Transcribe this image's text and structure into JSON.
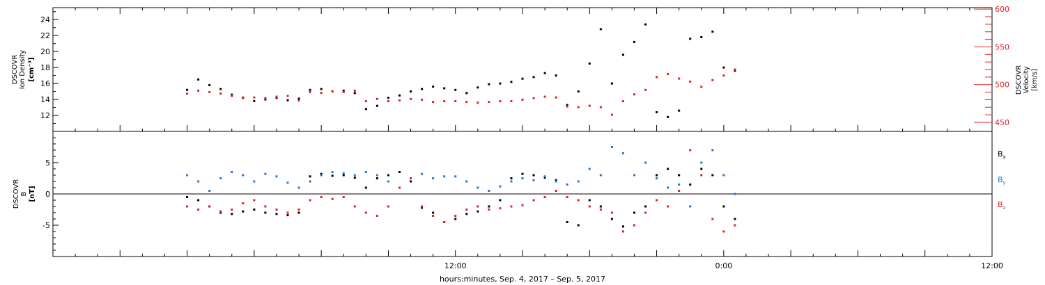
{
  "chart_data": [
    {
      "type": "scatter",
      "panel": "top",
      "ylabel": [
        "DSCOVR",
        "Ion  Density",
        "[cm⁻³]"
      ],
      "ylim": [
        10,
        25.5
      ],
      "yticks": [
        "12",
        "14",
        "16",
        "18",
        "20",
        "22",
        "24"
      ],
      "y2label": [
        "DSCOVR",
        "Velocity",
        "[km/s]"
      ],
      "y2lim": [
        438,
        602
      ],
      "y2ticks": [
        "450",
        "500",
        "550",
        "600"
      ],
      "right_axis_color": "#e02020",
      "series": [
        {
          "axis": "left",
          "color": "#000000",
          "x": [
            0,
            0.5,
            1,
            1.5,
            2,
            2.5,
            3,
            3.5,
            4,
            4.5,
            5,
            5.5,
            6,
            6.5,
            7,
            7.5,
            8,
            8.5,
            9,
            9.5,
            10,
            10.5,
            11,
            11.5,
            12,
            12.5,
            13,
            13.5,
            14,
            14.5,
            15,
            15.5,
            16,
            16.5,
            17,
            17.5,
            18,
            18.5,
            19,
            19.5,
            20,
            20.5,
            21,
            21.5,
            22,
            22.5,
            23,
            23.5,
            24,
            24.5
          ],
          "values": [
            15.2,
            16.5,
            15.8,
            15.3,
            14.6,
            14.2,
            13.8,
            14.0,
            14.2,
            13.9,
            14.1,
            15.2,
            15.3,
            15.0,
            15.1,
            14.8,
            12.8,
            13.2,
            14.2,
            14.5,
            15.0,
            15.3,
            15.6,
            15.4,
            15.2,
            14.8,
            15.5,
            15.9,
            16.0,
            16.2,
            16.6,
            16.8,
            17.3,
            17.0,
            13.3,
            15.0,
            18.5,
            22.8,
            16.0,
            19.6,
            21.2,
            23.4,
            12.4,
            11.8,
            12.6,
            21.6,
            21.8,
            22.5,
            18.0,
            17.6
          ]
        },
        {
          "axis": "right",
          "color": "#e02020",
          "x": [
            0,
            0.5,
            1,
            1.5,
            2,
            2.5,
            3,
            3.5,
            4,
            4.5,
            5,
            5.5,
            6,
            6.5,
            7,
            7.5,
            8,
            8.5,
            9,
            9.5,
            10,
            10.5,
            11,
            11.5,
            12,
            12.5,
            13,
            13.5,
            14,
            14.5,
            15,
            15.5,
            16,
            16.5,
            17,
            17.5,
            18,
            18.5,
            19,
            19.5,
            20,
            20.5,
            21,
            21.5,
            22,
            22.5,
            23,
            23.5,
            24,
            24.5
          ],
          "values": [
            488,
            492,
            490,
            488,
            485,
            483,
            483,
            482,
            484,
            485,
            479,
            490,
            489,
            491,
            490,
            492,
            478,
            481,
            478,
            479,
            481,
            480,
            477,
            478,
            478,
            477,
            476,
            477,
            478,
            478,
            480,
            482,
            484,
            483,
            471,
            470,
            472,
            470,
            460,
            478,
            487,
            493,
            510,
            514,
            508,
            504,
            497,
            506,
            512,
            520
          ]
        }
      ]
    },
    {
      "type": "scatter",
      "panel": "bottom",
      "ylabel": [
        "DSCOVR",
        "B",
        "[nT]"
      ],
      "ylim": [
        -10,
        10
      ],
      "yticks": [
        "-5",
        "0",
        "5"
      ],
      "series": [
        {
          "name": "Bx",
          "color": "#000000",
          "x": [
            0,
            0.5,
            1,
            1.5,
            2,
            2.5,
            3,
            3.5,
            4,
            4.5,
            5,
            5.5,
            6,
            6.5,
            7,
            7.5,
            8,
            8.5,
            9,
            9.5,
            10,
            10.5,
            11,
            11.5,
            12,
            12.5,
            13,
            13.5,
            14,
            14.5,
            15,
            15.5,
            16,
            16.5,
            17,
            17.5,
            18,
            18.5,
            19,
            19.5,
            20,
            20.5,
            21,
            21.5,
            22,
            22.5,
            23,
            23.5,
            24,
            24.5
          ],
          "values": [
            -0.5,
            -1.0,
            -2.0,
            -3.0,
            -3.2,
            -2.8,
            -2.5,
            -3.0,
            -3.2,
            -3.4,
            -3.0,
            2.8,
            3.2,
            2.9,
            3.0,
            2.6,
            1.0,
            2.5,
            3.0,
            3.5,
            2.0,
            -2.2,
            -3.0,
            -4.5,
            -4.0,
            -3.2,
            -2.8,
            -2.0,
            -1.0,
            2.5,
            3.2,
            3.0,
            2.6,
            2.2,
            -4.5,
            -5.0,
            -1.0,
            -2.0,
            -4.0,
            -5.2,
            -3.0,
            -2.0,
            3.0,
            4.0,
            3.0,
            1.5,
            4.0,
            3.0,
            -2.0,
            -4.0
          ]
        },
        {
          "name": "By",
          "color": "#1e78d2",
          "x": [
            0,
            0.5,
            1,
            1.5,
            2,
            2.5,
            3,
            3.5,
            4,
            4.5,
            5,
            5.5,
            6,
            6.5,
            7,
            7.5,
            8,
            8.5,
            9,
            9.5,
            10,
            10.5,
            11,
            11.5,
            12,
            12.5,
            13,
            13.5,
            14,
            14.5,
            15,
            15.5,
            16,
            16.5,
            17,
            17.5,
            18,
            18.5,
            19,
            19.5,
            20,
            20.5,
            21,
            21.5,
            22,
            22.5,
            23,
            23.5,
            24,
            24.5
          ],
          "values": [
            3.0,
            2.0,
            0.5,
            2.5,
            3.5,
            3.0,
            2.0,
            3.2,
            2.8,
            1.8,
            1.0,
            2.0,
            3.0,
            3.5,
            3.3,
            3.0,
            3.5,
            3.0,
            2.0,
            1.0,
            2.5,
            3.2,
            2.5,
            2.8,
            2.8,
            2.0,
            1.0,
            0.5,
            1.2,
            2.0,
            2.5,
            2.2,
            2.8,
            2.0,
            1.5,
            2.0,
            4.0,
            3.0,
            7.5,
            6.5,
            3.0,
            5.0,
            2.5,
            1.0,
            1.5,
            -2.0,
            5.0,
            7.0,
            3.0,
            0.0
          ]
        },
        {
          "name": "Bz",
          "color": "#e02020",
          "x": [
            0,
            0.5,
            1,
            1.5,
            2,
            2.5,
            3,
            3.5,
            4,
            4.5,
            5,
            5.5,
            6,
            6.5,
            7,
            7.5,
            8,
            8.5,
            9,
            9.5,
            10,
            10.5,
            11,
            11.5,
            12,
            12.5,
            13,
            13.5,
            14,
            14.5,
            15,
            15.5,
            16,
            16.5,
            17,
            17.5,
            18,
            18.5,
            19,
            19.5,
            20,
            20.5,
            21,
            21.5,
            22,
            22.5,
            23,
            23.5,
            24,
            24.5
          ],
          "values": [
            -2.0,
            -2.5,
            -2.0,
            -2.8,
            -2.5,
            -1.5,
            -1.0,
            -2.0,
            -2.5,
            -3.0,
            -2.5,
            -1.0,
            -0.5,
            -0.8,
            -0.5,
            -2.0,
            -3.0,
            -3.5,
            -2.0,
            1.0,
            2.5,
            -2.0,
            -3.5,
            -4.5,
            -3.5,
            -2.5,
            -2.0,
            -2.5,
            -2.3,
            -2.0,
            -1.8,
            -1.0,
            -0.5,
            0.5,
            -0.5,
            -1.0,
            -2.0,
            -2.5,
            -3.0,
            -6.0,
            -5.0,
            -3.0,
            -1.0,
            -2.0,
            0.5,
            7.0,
            3.0,
            -4.0,
            -6.0,
            -5.0
          ]
        }
      ]
    }
  ],
  "legend": [
    {
      "main": "B",
      "sub": "x",
      "color": "#000000"
    },
    {
      "main": "B",
      "sub": "y",
      "color": "#1e78d2"
    },
    {
      "main": "B",
      "sub": "z",
      "color": "#e02020"
    }
  ],
  "x_axis": {
    "hour_start": -6,
    "hour_end": 36,
    "tick_labels": [
      {
        "hour": 12,
        "label": "12:00"
      },
      {
        "hour": 24,
        "label": "0:00"
      },
      {
        "hour": 36,
        "label": "12:00"
      }
    ],
    "xlabel": "hours:minutes, Sep.  4, 2017 – Sep.  5, 2017"
  }
}
